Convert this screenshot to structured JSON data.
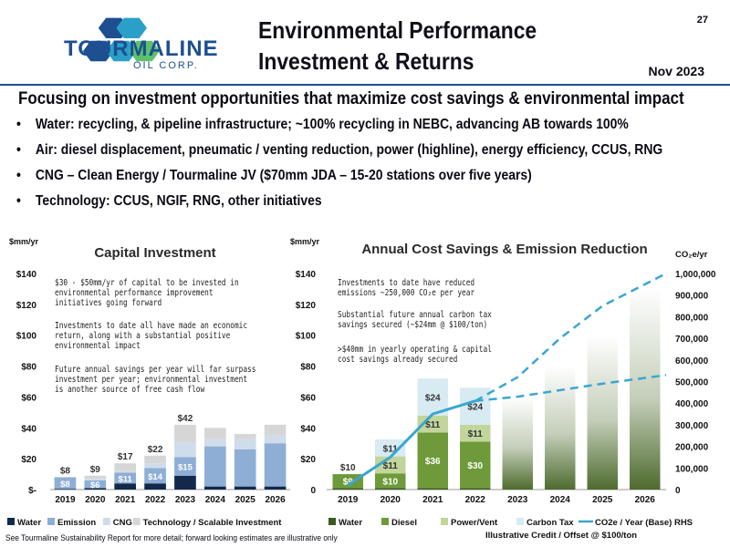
{
  "header": {
    "logo_name": "TOURMALINE",
    "logo_sub": "OIL CORP.",
    "title_line1": "Environmental Performance",
    "title_line2": "Investment & Returns",
    "page_number": "27",
    "date": "Nov 2023"
  },
  "headline": "Focusing on investment opportunities that maximize cost savings & environmental impact",
  "bullets": [
    "Water: recycling, & pipeline infrastructure; ~100% recycling in NEBC, advancing AB towards 100%",
    "Air: diesel displacement, pneumatic / venting reduction, power (highline), energy efficiency, CCUS, RNG",
    "CNG – Clean Energy / Tourmaline JV ($70mm JDA – 15-20 stations over five years)",
    "Technology: CCUS, NGIF, RNG, other initiatives"
  ],
  "left_notes": [
    "$30 - $50mm/yr of capital to be invested in\nenvironmental performance improvement\ninitiatives going forward",
    "Investments to date all have made an economic\nreturn, along with a substantial positive\nenvironmental impact",
    "Future annual savings per year will far surpass\ninvestment per year; environmental investment\nis another source of free cash flow"
  ],
  "right_notes": [
    "Investments to date have reduced\nemissions ~250,000 CO₂e per year",
    "Substantial future annual carbon tax\nsavings secured (~$24mm @ $100/ton)",
    ">$40mm in yearly operating & capital\ncost savings already secured"
  ],
  "footnote": "See Tourmaline Sustainability Report for more detail; forward looking estimates are illustrative only",
  "colors": {
    "navy": "#13294b",
    "blue": "#8eaed6",
    "cng": "#cfdceb",
    "tech": "#d6d6d6",
    "water_green": "#3b5a1e",
    "diesel_green": "#6e9a3a",
    "power_green": "#c2d59b",
    "carbon_tax": "#d8ebf3",
    "co2_line": "#3aa6d0"
  },
  "chart_data": [
    {
      "type": "bar",
      "stacked": true,
      "title": "Capital Investment",
      "ylabel": "$mm/yr",
      "ylim": [
        0,
        140
      ],
      "yticks": [
        "$-",
        "$20",
        "$40",
        "$60",
        "$80",
        "$100",
        "$120",
        "$140"
      ],
      "categories": [
        "2019",
        "2020",
        "2021",
        "2022",
        "2023",
        "2024",
        "2025",
        "2026"
      ],
      "series": [
        {
          "name": "Water",
          "values": [
            0.5,
            1,
            4,
            4,
            9,
            2,
            2,
            2
          ]
        },
        {
          "name": "Emission",
          "values": [
            7.5,
            5,
            7,
            10,
            12,
            26,
            24,
            28
          ]
        },
        {
          "name": "CNG",
          "values": [
            0,
            1,
            1,
            3,
            10,
            5,
            7,
            5
          ]
        },
        {
          "name": "Technology / Scalable Investment",
          "values": [
            0,
            2,
            5,
            5,
            11,
            7,
            3,
            7
          ]
        }
      ],
      "totals": [
        "$8",
        "$9",
        "$17",
        "$22",
        "$42",
        "",
        "",
        ""
      ],
      "segment_labels": [
        [
          "$8",
          "$6",
          "$11",
          "$14",
          "$15"
        ]
      ],
      "legend_position": "bottom"
    },
    {
      "type": "bar",
      "stacked": true,
      "title": "Annual Cost Savings & Emission Reduction",
      "ylabel": "$mm/yr",
      "ylabel_right": "CO₂e/yr",
      "ylim": [
        0,
        140
      ],
      "ylim_right": [
        0,
        1000000
      ],
      "yticks": [
        "0",
        "$20",
        "$40",
        "$60",
        "$80",
        "$100",
        "$120",
        "$140"
      ],
      "yticks_right": [
        "0",
        "100,000",
        "200,000",
        "300,000",
        "400,000",
        "500,000",
        "600,000",
        "700,000",
        "800,000",
        "900,000",
        "1,000,000"
      ],
      "categories": [
        "2019",
        "2020",
        "2021",
        "2022",
        "2023",
        "2024",
        "2025",
        "2026"
      ],
      "series": [
        {
          "name": "Water",
          "values": [
            1,
            1,
            1,
            1,
            0,
            0,
            0,
            0
          ]
        },
        {
          "name": "Diesel",
          "values": [
            9,
            9.5,
            36,
            30,
            0,
            0,
            0,
            0
          ]
        },
        {
          "name": "Power/Vent",
          "values": [
            0,
            11,
            11,
            11,
            0,
            0,
            0,
            0
          ]
        },
        {
          "name": "Carbon Tax",
          "values": [
            0,
            11,
            24,
            24,
            0,
            0,
            0,
            0
          ]
        },
        {
          "name": "Illustrative Credit / Offset @ $100/ton",
          "values": [
            0,
            0,
            0,
            0,
            60,
            80,
            100,
            130
          ]
        }
      ],
      "labels": {
        "2019": [
          "$9",
          "$10"
        ],
        "2020": [
          "$10",
          "$11",
          "$11"
        ],
        "2021": [
          "$36",
          "$11",
          "$24"
        ],
        "2022": [
          "$30",
          "$11",
          "$24"
        ]
      },
      "line": {
        "name": "CO2e / Year (Base) RHS",
        "x": [
          "2019",
          "2020",
          "2021",
          "2022"
        ],
        "y": [
          20000,
          150000,
          350000,
          410000
        ]
      },
      "projections": [
        {
          "x": [
            "2022",
            "2023",
            "2024",
            "2025",
            "2026"
          ],
          "y": [
            410000,
            430000,
            460000,
            490000,
            530000
          ]
        },
        {
          "x": [
            "2022",
            "2023",
            "2024",
            "2025",
            "2026"
          ],
          "y": [
            410000,
            520000,
            700000,
            850000,
            1000000
          ]
        }
      ],
      "legend_position": "bottom"
    }
  ]
}
